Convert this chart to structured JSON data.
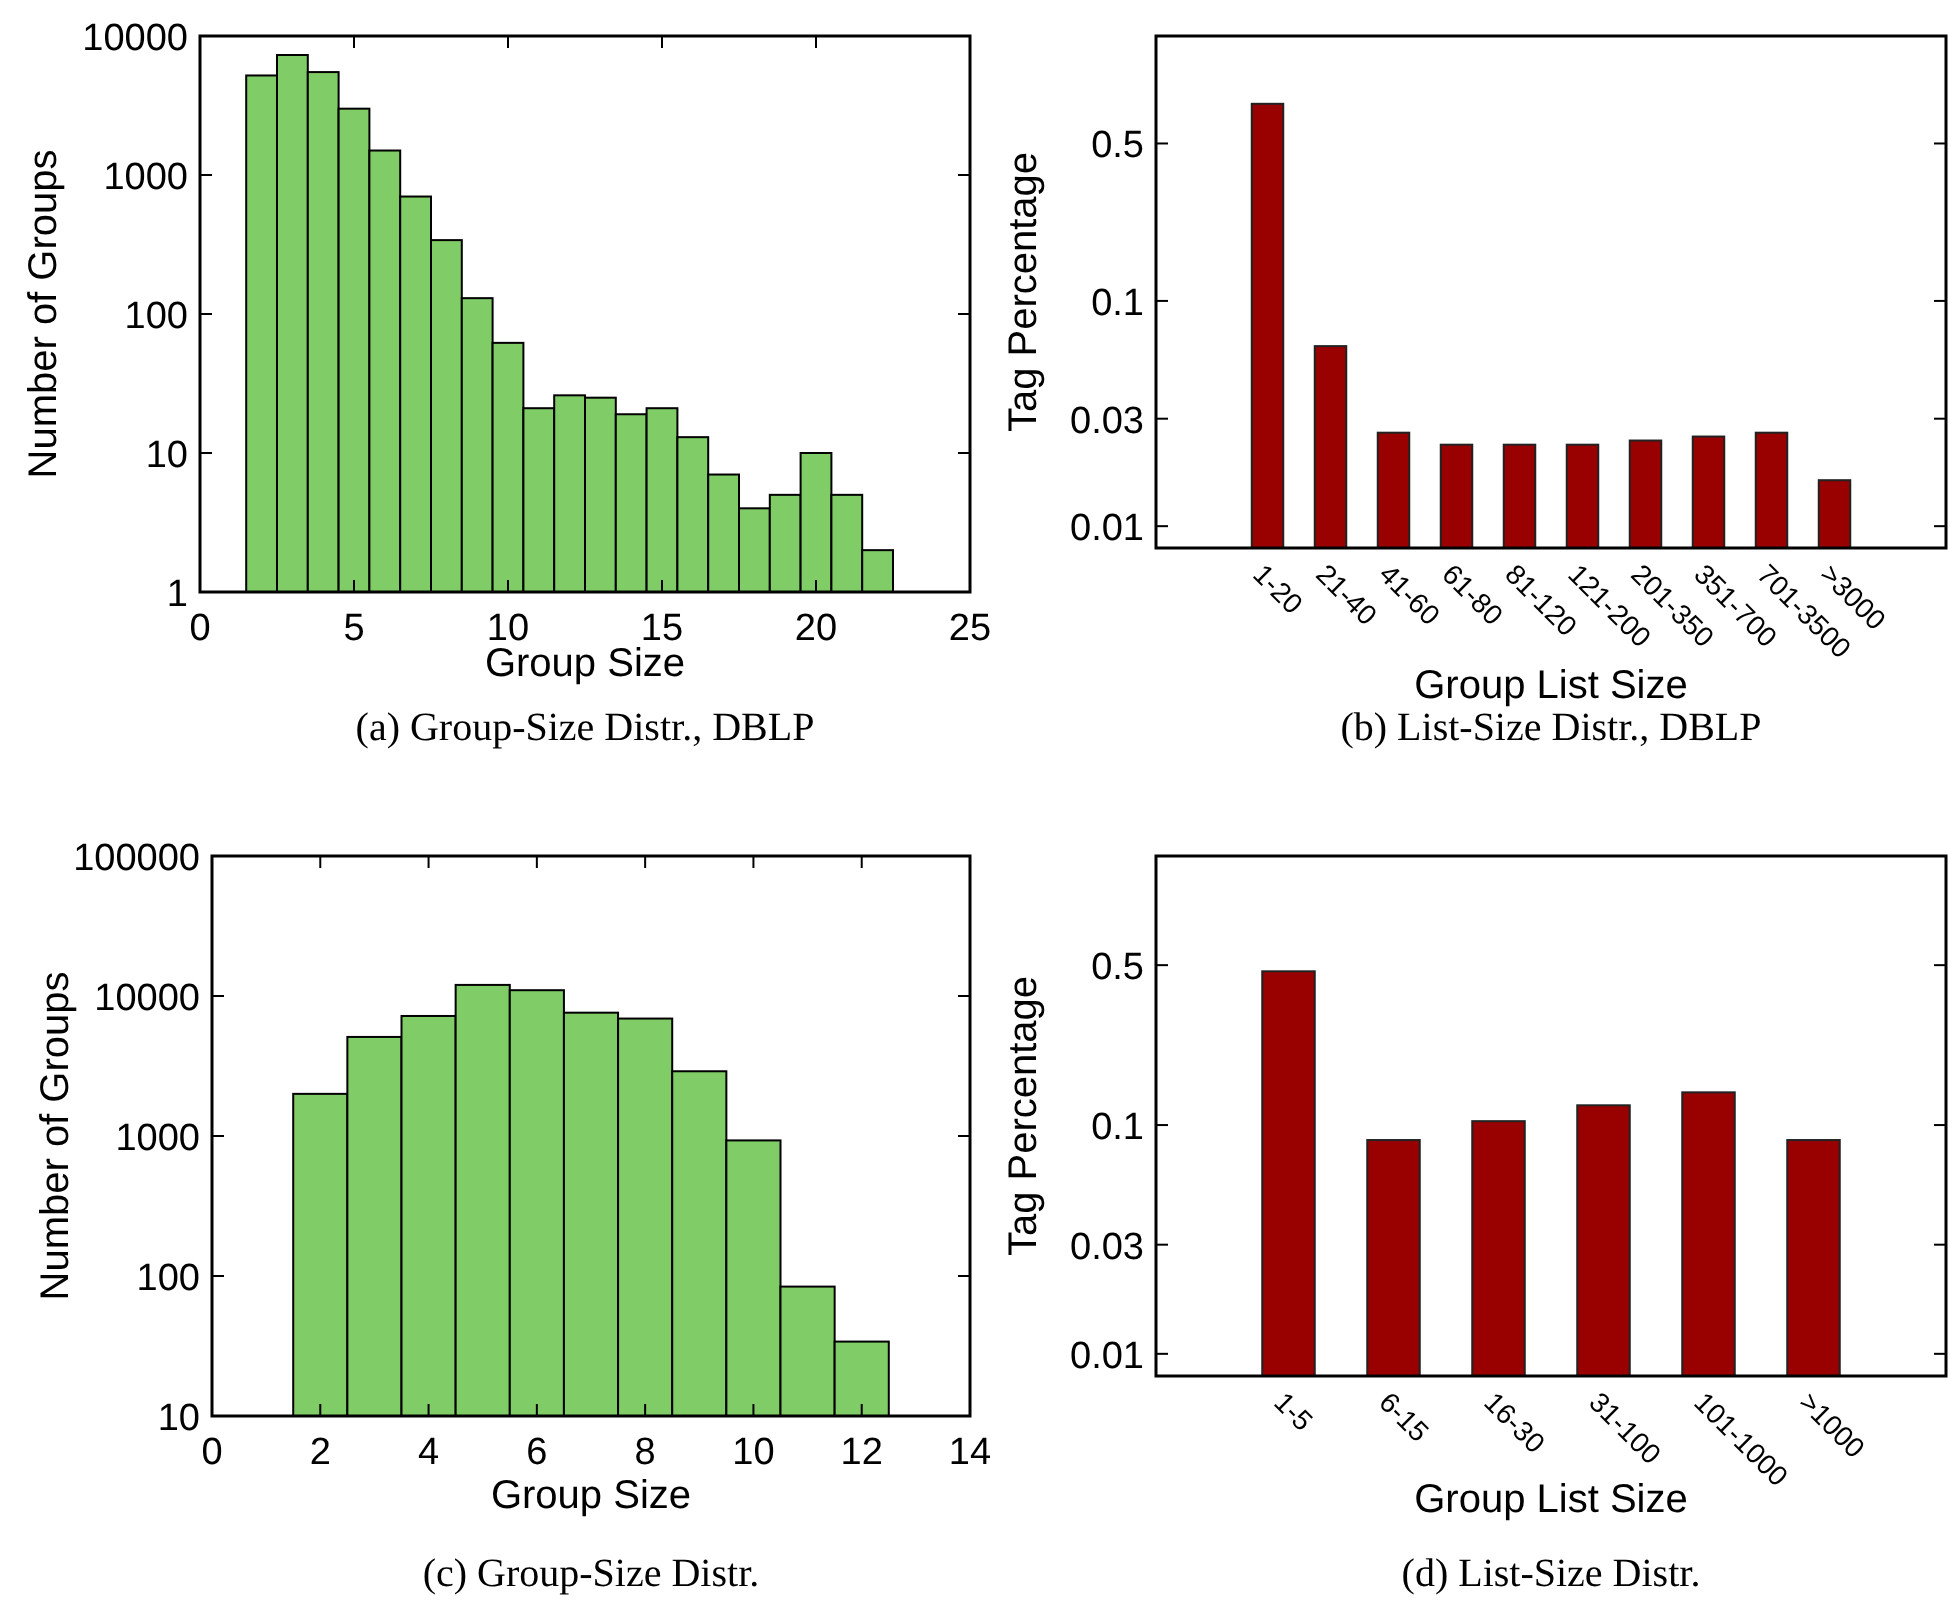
{
  "chart_data": [
    {
      "type": "histogram",
      "title": "(a)    Group-Size Distr., DBLP",
      "xlabel": "Group Size",
      "ylabel": "Number of Groups",
      "log": "y",
      "color": "#80cc66",
      "bins": [
        1.5,
        2.5,
        3.5,
        4.5,
        5.5,
        6.5,
        7.5,
        8.5,
        9.5,
        10.5,
        11.5,
        12.5,
        13.5,
        14.5,
        15.5,
        16.5,
        17.5,
        18.5,
        19.5,
        20.5,
        21.5,
        22.5
      ],
      "values": [
        5200,
        7300,
        5500,
        3000,
        1500,
        700,
        340,
        130,
        62,
        21,
        26,
        25,
        19,
        21,
        13,
        7,
        4,
        5,
        10,
        5,
        2
      ],
      "xlim": [
        0,
        25
      ],
      "xticks": [
        0,
        5,
        10,
        15,
        20,
        25
      ],
      "ylim": [
        1,
        10000
      ],
      "yticks": [
        1,
        10,
        100,
        1000,
        10000
      ]
    },
    {
      "type": "bar",
      "title": "(b)    List-Size Distr., DBLP",
      "xlabel": "Group List Size",
      "ylabel": "Tag Percentage",
      "log": "y",
      "color": "#990000",
      "categories": [
        "1-20",
        "21-40",
        "41-60",
        "61-80",
        "81-120",
        "121-200",
        "201-350",
        "351-700",
        "701-3500",
        ">3000"
      ],
      "values": [
        0.75,
        0.063,
        0.026,
        0.023,
        0.023,
        0.023,
        0.024,
        0.025,
        0.026,
        0.016
      ],
      "ylim": [
        0.008,
        1.5
      ],
      "yticks": [
        0.01,
        0.03,
        0.1,
        0.5
      ]
    },
    {
      "type": "histogram",
      "title": "(c)    Group-Size Distr.",
      "xlabel": "Group Size",
      "ylabel": "Number of Groups",
      "log": "y",
      "color": "#80cc66",
      "bins": [
        1.5,
        2.5,
        3.5,
        4.5,
        5.5,
        6.5,
        7.5,
        8.5,
        9.5,
        10.5,
        11.5,
        12.5
      ],
      "values": [
        2000,
        5100,
        7200,
        12000,
        11000,
        7600,
        6900,
        2900,
        930,
        84,
        34
      ],
      "xlim": [
        0,
        14
      ],
      "xticks": [
        0,
        2,
        4,
        6,
        8,
        10,
        12,
        14
      ],
      "ylim": [
        10,
        100000
      ],
      "yticks": [
        10,
        100,
        1000,
        10000,
        100000
      ]
    },
    {
      "type": "bar",
      "title": "(d)    List-Size Distr.",
      "xlabel": "Group List Size",
      "ylabel": "Tag Percentage",
      "log": "y",
      "color": "#990000",
      "categories": [
        "1-5",
        "6-15",
        "16-30",
        "31-100",
        "101-1000",
        ">1000"
      ],
      "values": [
        0.47,
        0.086,
        0.104,
        0.122,
        0.139,
        0.086
      ],
      "ylim": [
        0.008,
        1.5
      ],
      "yticks": [
        0.01,
        0.03,
        0.1,
        0.5
      ]
    }
  ]
}
